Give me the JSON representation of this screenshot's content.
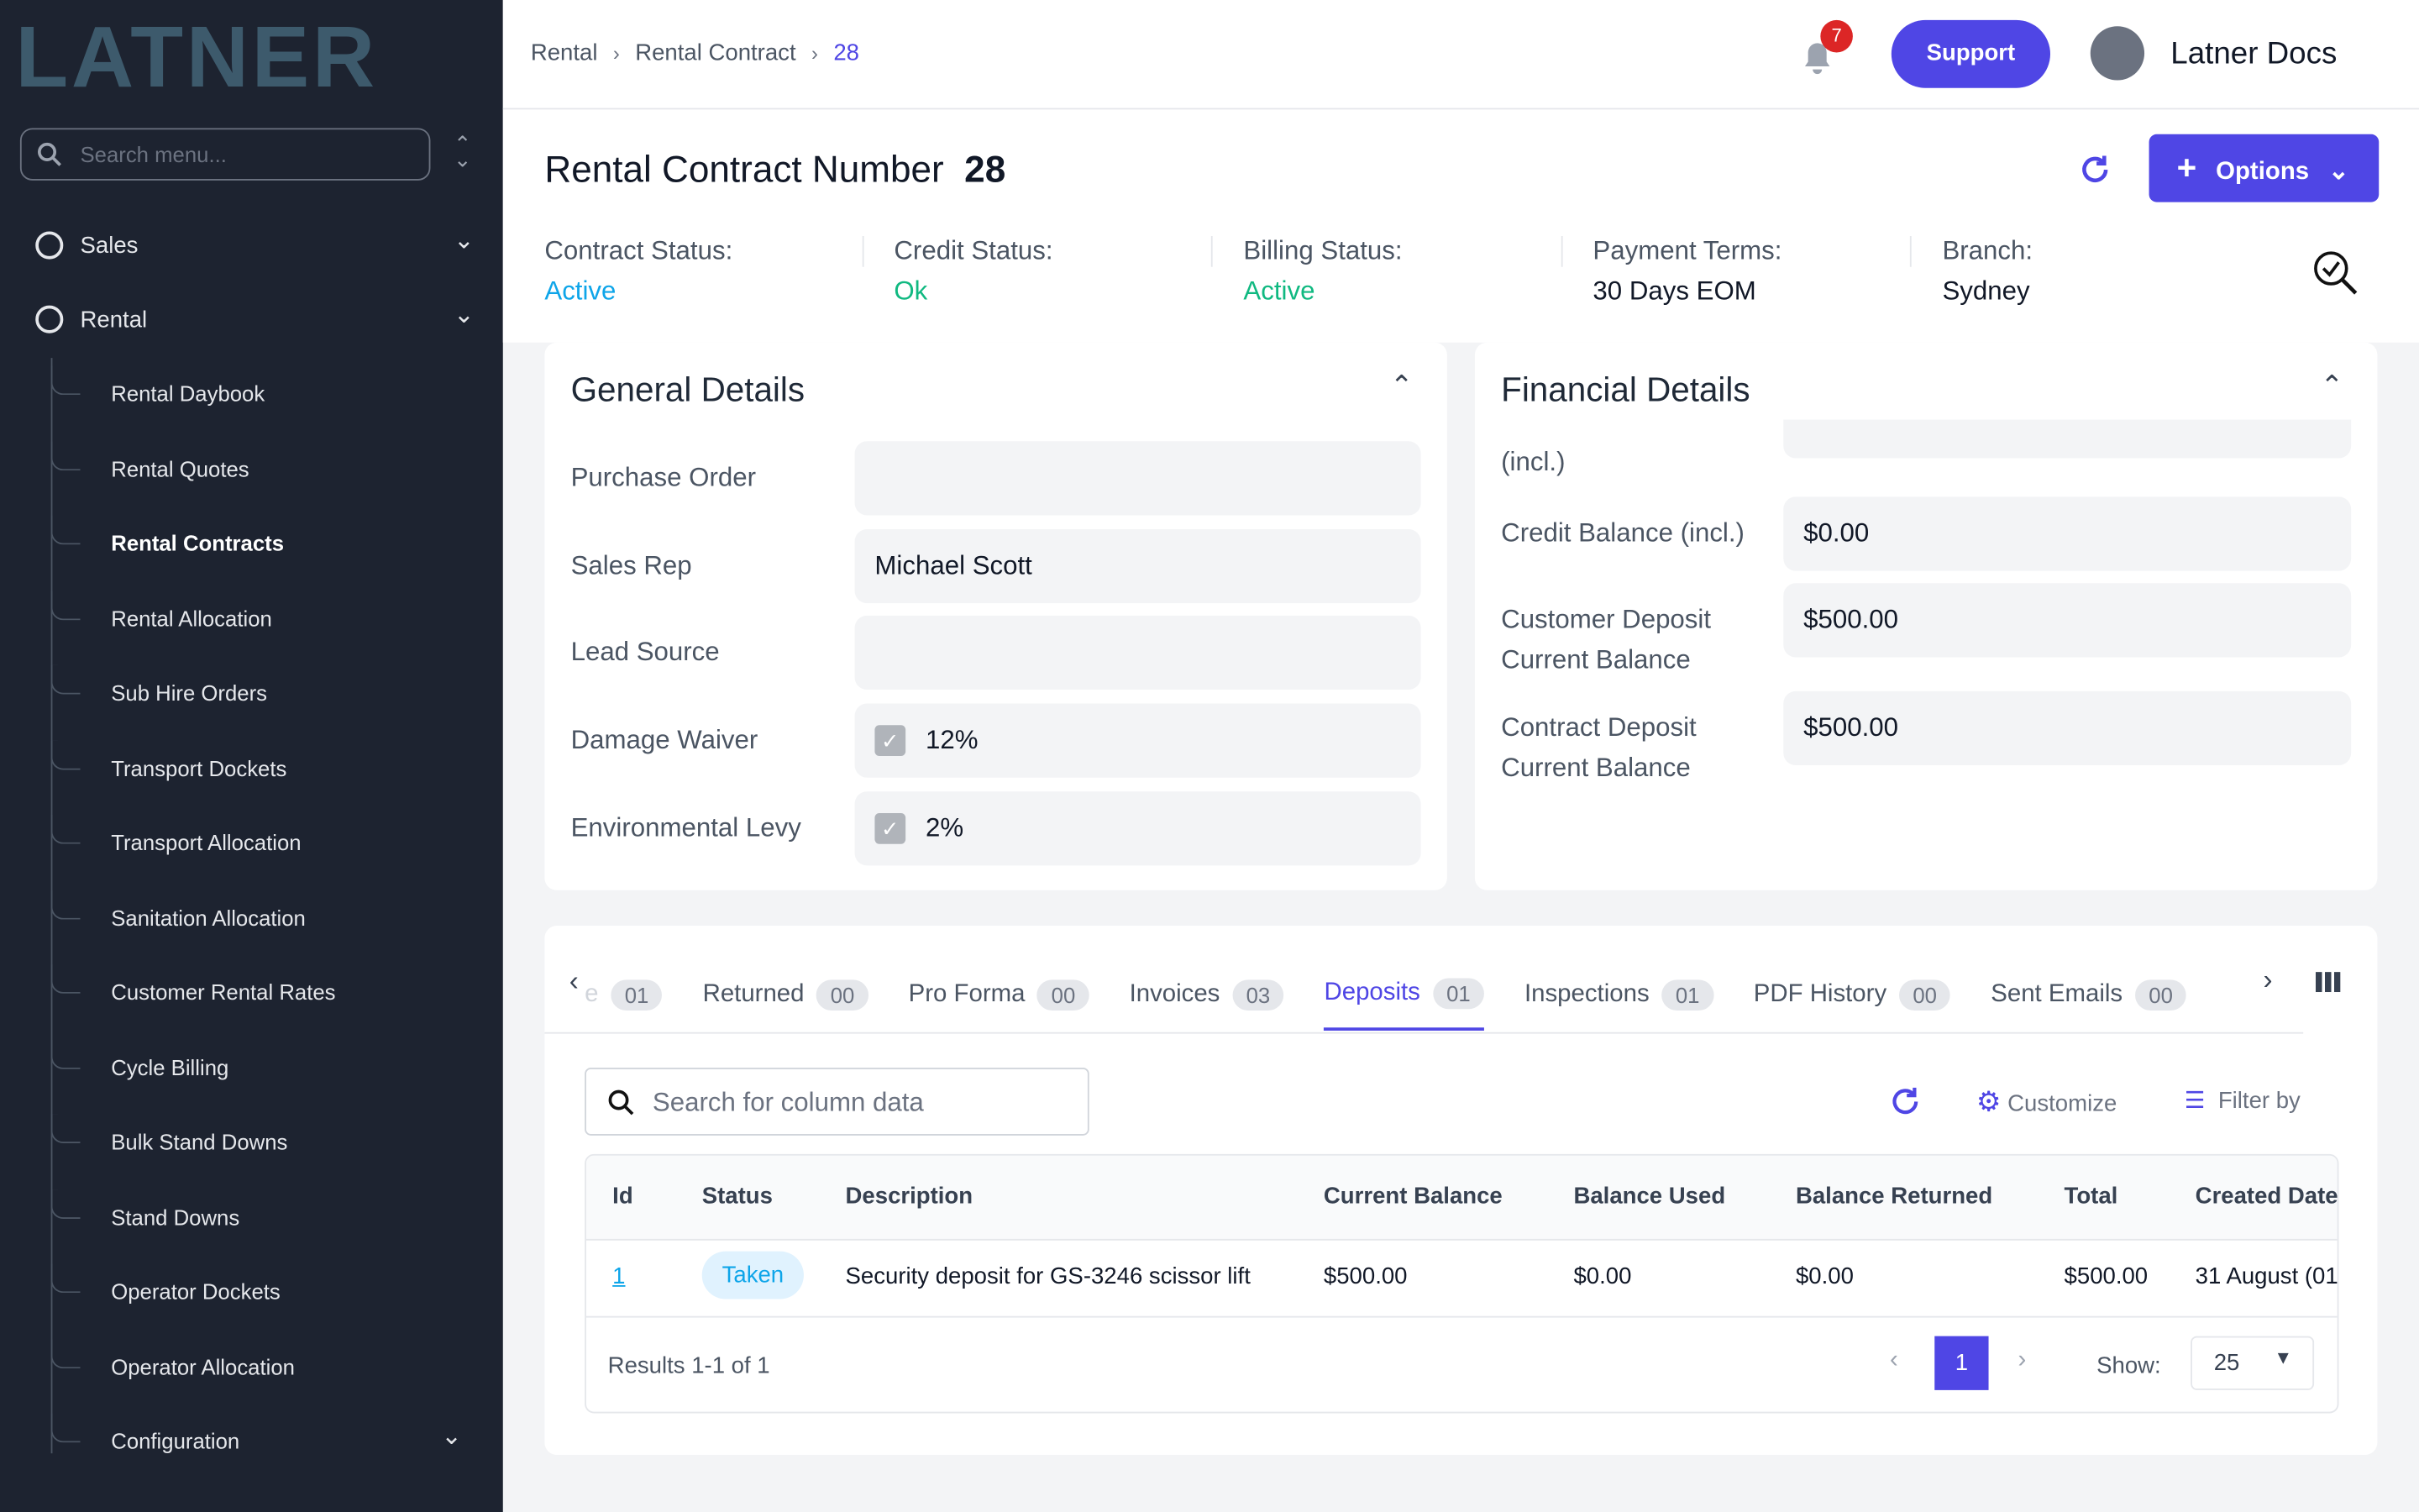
{
  "sidebar": {
    "logo": "LATNER",
    "search_placeholder": "Search menu...",
    "items": [
      {
        "label": "Sales"
      },
      {
        "label": "Rental"
      }
    ],
    "children": [
      "Rental Daybook",
      "Rental Quotes",
      "Rental Contracts",
      "Rental Allocation",
      "Sub Hire Orders",
      "Transport Dockets",
      "Transport Allocation",
      "Sanitation Allocation",
      "Customer Rental Rates",
      "Cycle Billing",
      "Bulk Stand Downs",
      "Stand Downs",
      "Operator Dockets",
      "Operator Allocation",
      "Configuration"
    ]
  },
  "header": {
    "breadcrumbs": [
      "Rental",
      "Rental Contract",
      "28"
    ],
    "notifications": "7",
    "support": "Support",
    "user": "Latner Docs"
  },
  "title": {
    "label": "Rental Contract Number",
    "number": "28",
    "options": "Options"
  },
  "status": [
    {
      "label": "Contract Status:",
      "value": "Active"
    },
    {
      "label": "Credit Status:",
      "value": "Ok"
    },
    {
      "label": "Billing Status:",
      "value": "Active"
    },
    {
      "label": "Payment Terms:",
      "value": "30 Days EOM"
    },
    {
      "label": "Branch:",
      "value": "Sydney"
    }
  ],
  "general_details": {
    "title": "General Details",
    "fields": [
      {
        "label": "Purchase Order",
        "value": ""
      },
      {
        "label": "Sales Rep",
        "value": "Michael Scott"
      },
      {
        "label": "Lead Source",
        "value": ""
      },
      {
        "label": "Damage Waiver",
        "value": "12%"
      },
      {
        "label": "Environmental Levy",
        "value": "2%"
      }
    ]
  },
  "financial_details": {
    "title": "Financial Details",
    "partial_label": "(incl.)",
    "fields": [
      {
        "label": "Credit Balance (incl.)",
        "value": "$0.00"
      },
      {
        "label": "Customer Deposit Current Balance",
        "value": "$500.00"
      },
      {
        "label": "Contract Deposit Current Balance",
        "value": "$500.00"
      }
    ]
  },
  "tabs": [
    {
      "label": "e",
      "count": "01"
    },
    {
      "label": "Returned",
      "count": "00"
    },
    {
      "label": "Pro Forma",
      "count": "00"
    },
    {
      "label": "Invoices",
      "count": "03"
    },
    {
      "label": "Deposits",
      "count": "01"
    },
    {
      "label": "Inspections",
      "count": "01"
    },
    {
      "label": "PDF History",
      "count": "00"
    },
    {
      "label": "Sent Emails",
      "count": "00"
    }
  ],
  "table": {
    "search_placeholder": "Search for column data",
    "customize": "Customize",
    "filter": "Filter by",
    "columns": [
      "Id",
      "Status",
      "Description",
      "Current Balance",
      "Balance Used",
      "Balance Returned",
      "Total",
      "Created Date"
    ],
    "rows": [
      [
        "1",
        "Taken",
        "Security deposit for GS-3246 scissor lift",
        "$500.00",
        "$0.00",
        "$0.00",
        "$500.00",
        "31 August (01"
      ]
    ],
    "results": "Results 1-1 of 1",
    "page": "1",
    "show_label": "Show:",
    "page_size": "25"
  }
}
